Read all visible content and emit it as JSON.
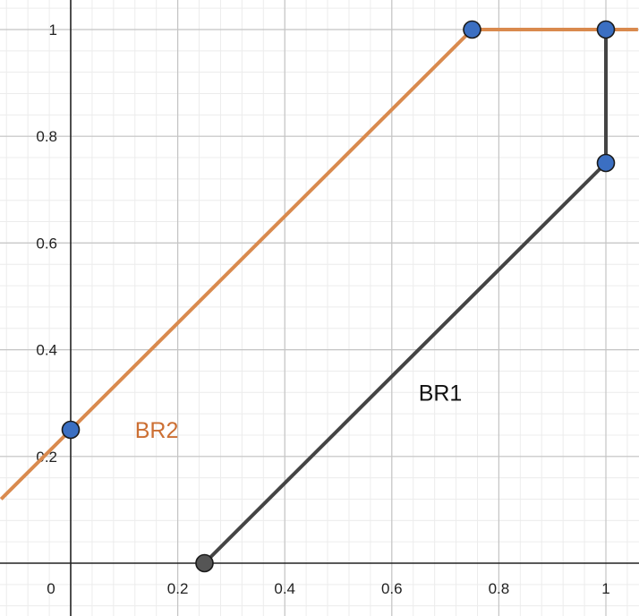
{
  "chart_data": {
    "type": "line",
    "title": "",
    "xlabel": "",
    "ylabel": "",
    "xlim": [
      -0.13,
      1.06
    ],
    "ylim": [
      -0.1,
      1.05
    ],
    "x_ticks": [
      0,
      0.2,
      0.4,
      0.6,
      0.8,
      1
    ],
    "x_tick_labels": [
      "0",
      "0.2",
      "0.4",
      "0.6",
      "0.8",
      "1"
    ],
    "y_ticks": [
      0.2,
      0.4,
      0.6,
      0.8,
      1
    ],
    "y_tick_labels": [
      "0.2",
      "0.4",
      "0.6",
      "0.8",
      "1"
    ],
    "grid": true,
    "minor_grid": true,
    "series": [
      {
        "name": "BR2",
        "color": "#d98a4e",
        "label_color": "#cc6f33",
        "points": [
          [
            -0.13,
            0.12
          ],
          [
            0.75,
            1
          ],
          [
            1.06,
            1
          ]
        ],
        "markers": [
          [
            0,
            0.25
          ],
          [
            0.75,
            1
          ],
          [
            1,
            1
          ]
        ],
        "label_anchor": [
          0.12,
          0.25
        ]
      },
      {
        "name": "BR1",
        "color": "#444444",
        "label_color": "#111111",
        "points": [
          [
            0.25,
            0
          ],
          [
            1,
            0.75
          ],
          [
            1,
            1
          ]
        ],
        "markers": [
          [
            0.25,
            0
          ],
          [
            1,
            0.75
          ]
        ],
        "label_anchor": [
          0.65,
          0.32
        ]
      }
    ],
    "marker_colors": {
      "BR2": "#3b6fc2",
      "BR1_start": "#555555",
      "BR1_end": "#3b6fc2"
    }
  }
}
